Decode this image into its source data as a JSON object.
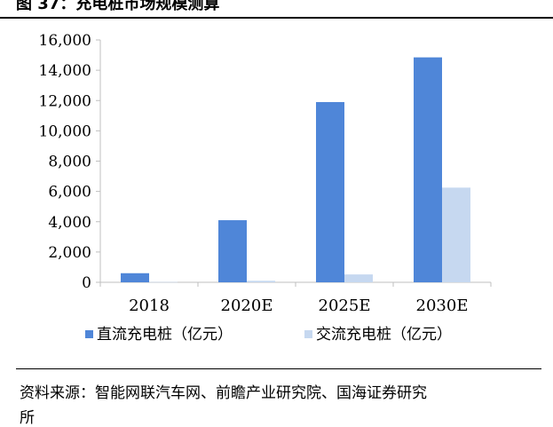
{
  "figure": {
    "title": "图 37：充电桩市场规模测算",
    "source": "资料来源：智能网联汽车网、前瞻产业研究院、国海证券研究",
    "source_cont": "所"
  },
  "chart_data": {
    "type": "bar",
    "title": "",
    "xlabel": "",
    "ylabel": "",
    "categories": [
      "2018",
      "2020E",
      "2025E",
      "2030E"
    ],
    "ylim": [
      0,
      16000
    ],
    "yticks": [
      "0",
      "2,000",
      "4,000",
      "6,000",
      "8,000",
      "10,000",
      "12,000",
      "14,000",
      "16,000"
    ],
    "grid": false,
    "legend_position": "bottom",
    "series": [
      {
        "name": "直流充电桩（亿元）",
        "color": "#4f86d8",
        "values": [
          600,
          4100,
          11900,
          14850
        ]
      },
      {
        "name": "交流充电桩（亿元）",
        "color": "#c6d8f0",
        "values": [
          20,
          100,
          520,
          6250
        ]
      }
    ]
  }
}
